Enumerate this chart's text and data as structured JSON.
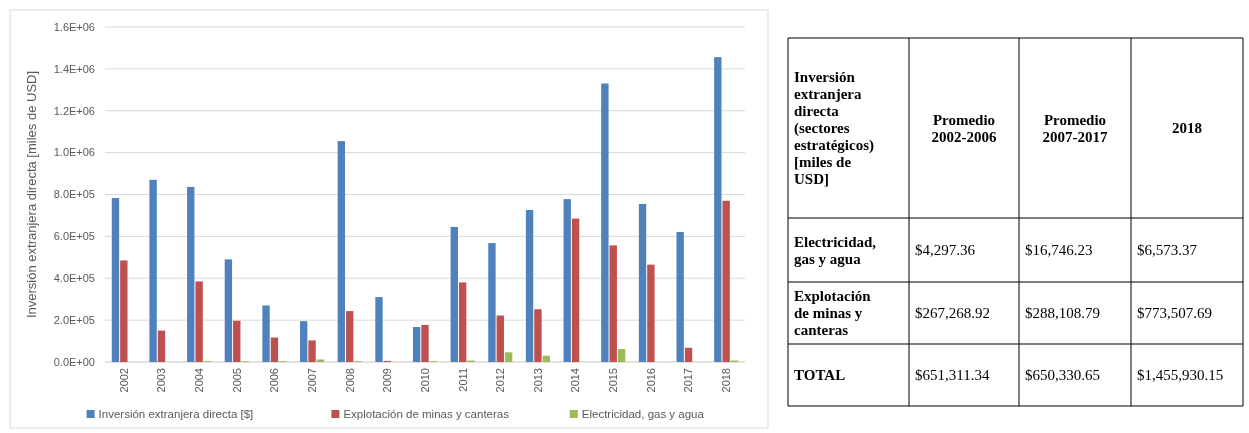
{
  "chart_data": [
    {
      "type": "bar",
      "ylabel": "Inversión extranjera directa [miles de USD]",
      "categories": [
        "2002",
        "2003",
        "2004",
        "2005",
        "2006",
        "2007",
        "2008",
        "2009",
        "2010",
        "2011",
        "2012",
        "2013",
        "2014",
        "2015",
        "2016",
        "2017",
        "2018"
      ],
      "series": [
        {
          "name": "Inversión extranjera directa [$]",
          "color": "#4f81bd",
          "values": [
            783000,
            870000,
            836000,
            490000,
            270000,
            195000,
            1055000,
            310000,
            167000,
            645000,
            568000,
            726000,
            778000,
            1330000,
            755000,
            621000,
            1456000
          ]
        },
        {
          "name": "Explotación de minas y canteras",
          "color": "#c0504d",
          "values": [
            485000,
            150000,
            385000,
            197000,
            117000,
            103000,
            243000,
            5000,
            177000,
            380000,
            222000,
            252000,
            685000,
            557000,
            465000,
            68000,
            770000
          ]
        },
        {
          "name": "Electricidad, gas y agua",
          "color": "#9bbb59",
          "values": [
            0,
            0,
            4000,
            4000,
            4000,
            12000,
            4000,
            0,
            4000,
            7000,
            46000,
            30000,
            0,
            62000,
            0,
            0,
            7000
          ]
        }
      ],
      "ylim": [
        0,
        1600000
      ],
      "yticks": [
        {
          "value": 0,
          "label": "0.0E+00"
        },
        {
          "value": 200000,
          "label": "2.0E+05"
        },
        {
          "value": 400000,
          "label": "4.0E+05"
        },
        {
          "value": 600000,
          "label": "6.0E+05"
        },
        {
          "value": 800000,
          "label": "8.0E+05"
        },
        {
          "value": 1000000,
          "label": "1.0E+06"
        },
        {
          "value": 1200000,
          "label": "1.2E+06"
        },
        {
          "value": 1400000,
          "label": "1.4E+06"
        },
        {
          "value": 1600000,
          "label": "1.6E+06"
        }
      ],
      "grid": "y",
      "legend": "bottom"
    },
    {
      "type": "other",
      "title": "Inversión extranjera directa (sectores estratégicos) [miles de USD]",
      "categories": [
        "Promedio 2002-2006",
        "Promedio 2007-2017",
        "2018"
      ],
      "y_categories": [
        "Electricidad, gas y agua",
        "Explotación de minas y canteras",
        "TOTAL"
      ],
      "cell_labels": [
        [
          "$4,297.36",
          "$16,746.23",
          "$6,573.37"
        ],
        [
          "$267,268.92",
          "$288,108.79",
          "$773,507.69"
        ],
        [
          "$651,311.34",
          "$650,330.65",
          "$1,455,930.15"
        ]
      ]
    }
  ]
}
